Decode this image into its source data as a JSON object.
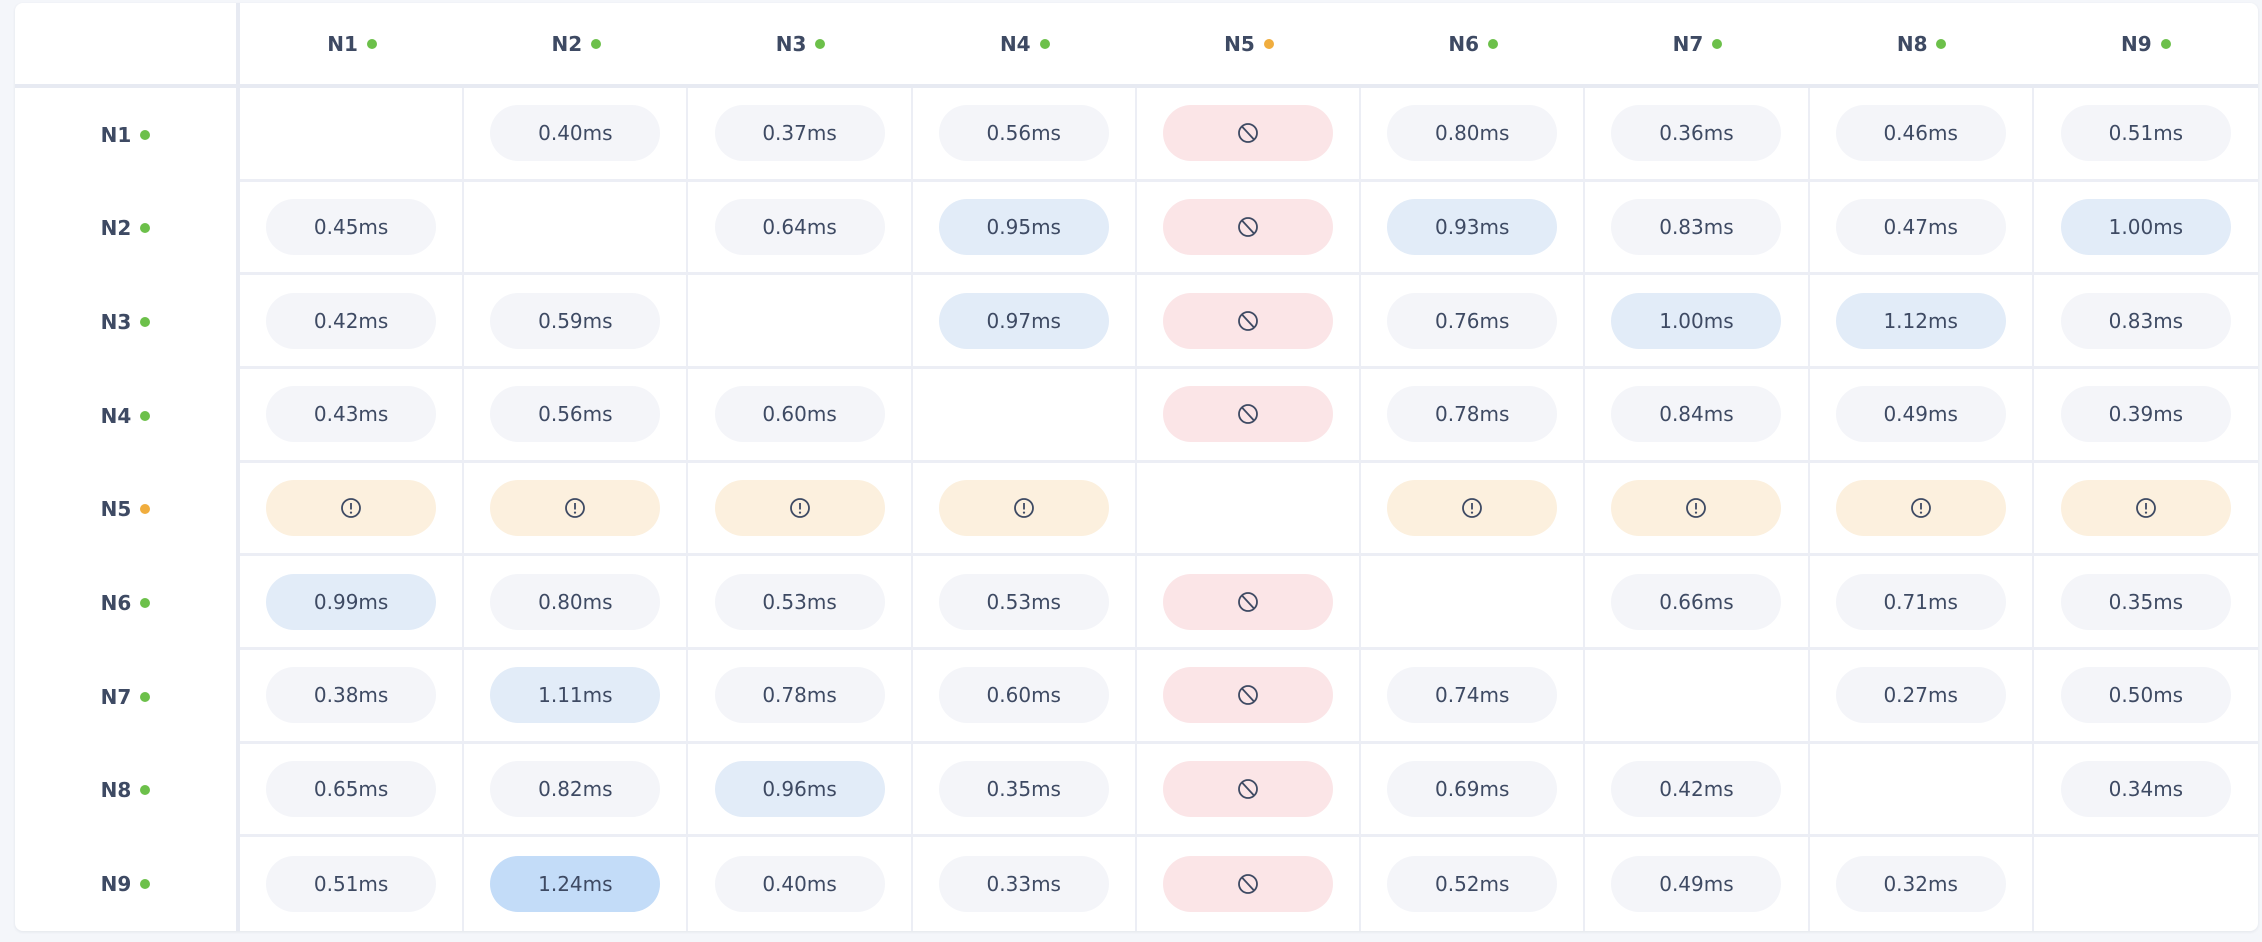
{
  "colors": {
    "status_ok": "#6cc04a",
    "status_warning": "#f0ad3e",
    "latency_normal_bg": "#f4f5f9",
    "latency_elevated_bg": "#e2ecf8",
    "latency_high_bg": "#c3dcf8",
    "blocked_bg": "#fbe5e7",
    "warning_bg": "#fcf0de",
    "text": "#3e4a63"
  },
  "nodes": [
    {
      "label": "N1",
      "status": "ok"
    },
    {
      "label": "N2",
      "status": "ok"
    },
    {
      "label": "N3",
      "status": "ok"
    },
    {
      "label": "N4",
      "status": "ok"
    },
    {
      "label": "N5",
      "status": "warning"
    },
    {
      "label": "N6",
      "status": "ok"
    },
    {
      "label": "N7",
      "status": "ok"
    },
    {
      "label": "N8",
      "status": "ok"
    },
    {
      "label": "N9",
      "status": "ok"
    }
  ],
  "cell_icons": {
    "blocked": "blocked-circle-slash-icon",
    "warning": "warning-exclamation-circle-icon"
  },
  "matrix": [
    [
      "",
      "0.40ms",
      "0.37ms",
      "0.56ms",
      "blocked",
      "0.80ms",
      "0.36ms",
      "0.46ms",
      "0.51ms"
    ],
    [
      "0.45ms",
      "",
      "0.64ms",
      "0.95ms",
      "blocked",
      "0.93ms",
      "0.83ms",
      "0.47ms",
      "1.00ms"
    ],
    [
      "0.42ms",
      "0.59ms",
      "",
      "0.97ms",
      "blocked",
      "0.76ms",
      "1.00ms",
      "1.12ms",
      "0.83ms"
    ],
    [
      "0.43ms",
      "0.56ms",
      "0.60ms",
      "",
      "blocked",
      "0.78ms",
      "0.84ms",
      "0.49ms",
      "0.39ms"
    ],
    [
      "warning",
      "warning",
      "warning",
      "warning",
      "",
      "warning",
      "warning",
      "warning",
      "warning"
    ],
    [
      "0.99ms",
      "0.80ms",
      "0.53ms",
      "0.53ms",
      "blocked",
      "",
      "0.66ms",
      "0.71ms",
      "0.35ms"
    ],
    [
      "0.38ms",
      "1.11ms",
      "0.78ms",
      "0.60ms",
      "blocked",
      "0.74ms",
      "",
      "0.27ms",
      "0.50ms"
    ],
    [
      "0.65ms",
      "0.82ms",
      "0.96ms",
      "0.35ms",
      "blocked",
      "0.69ms",
      "0.42ms",
      "",
      "0.34ms"
    ],
    [
      "0.51ms",
      "1.24ms",
      "0.40ms",
      "0.33ms",
      "blocked",
      "0.52ms",
      "0.49ms",
      "0.32ms",
      ""
    ]
  ]
}
